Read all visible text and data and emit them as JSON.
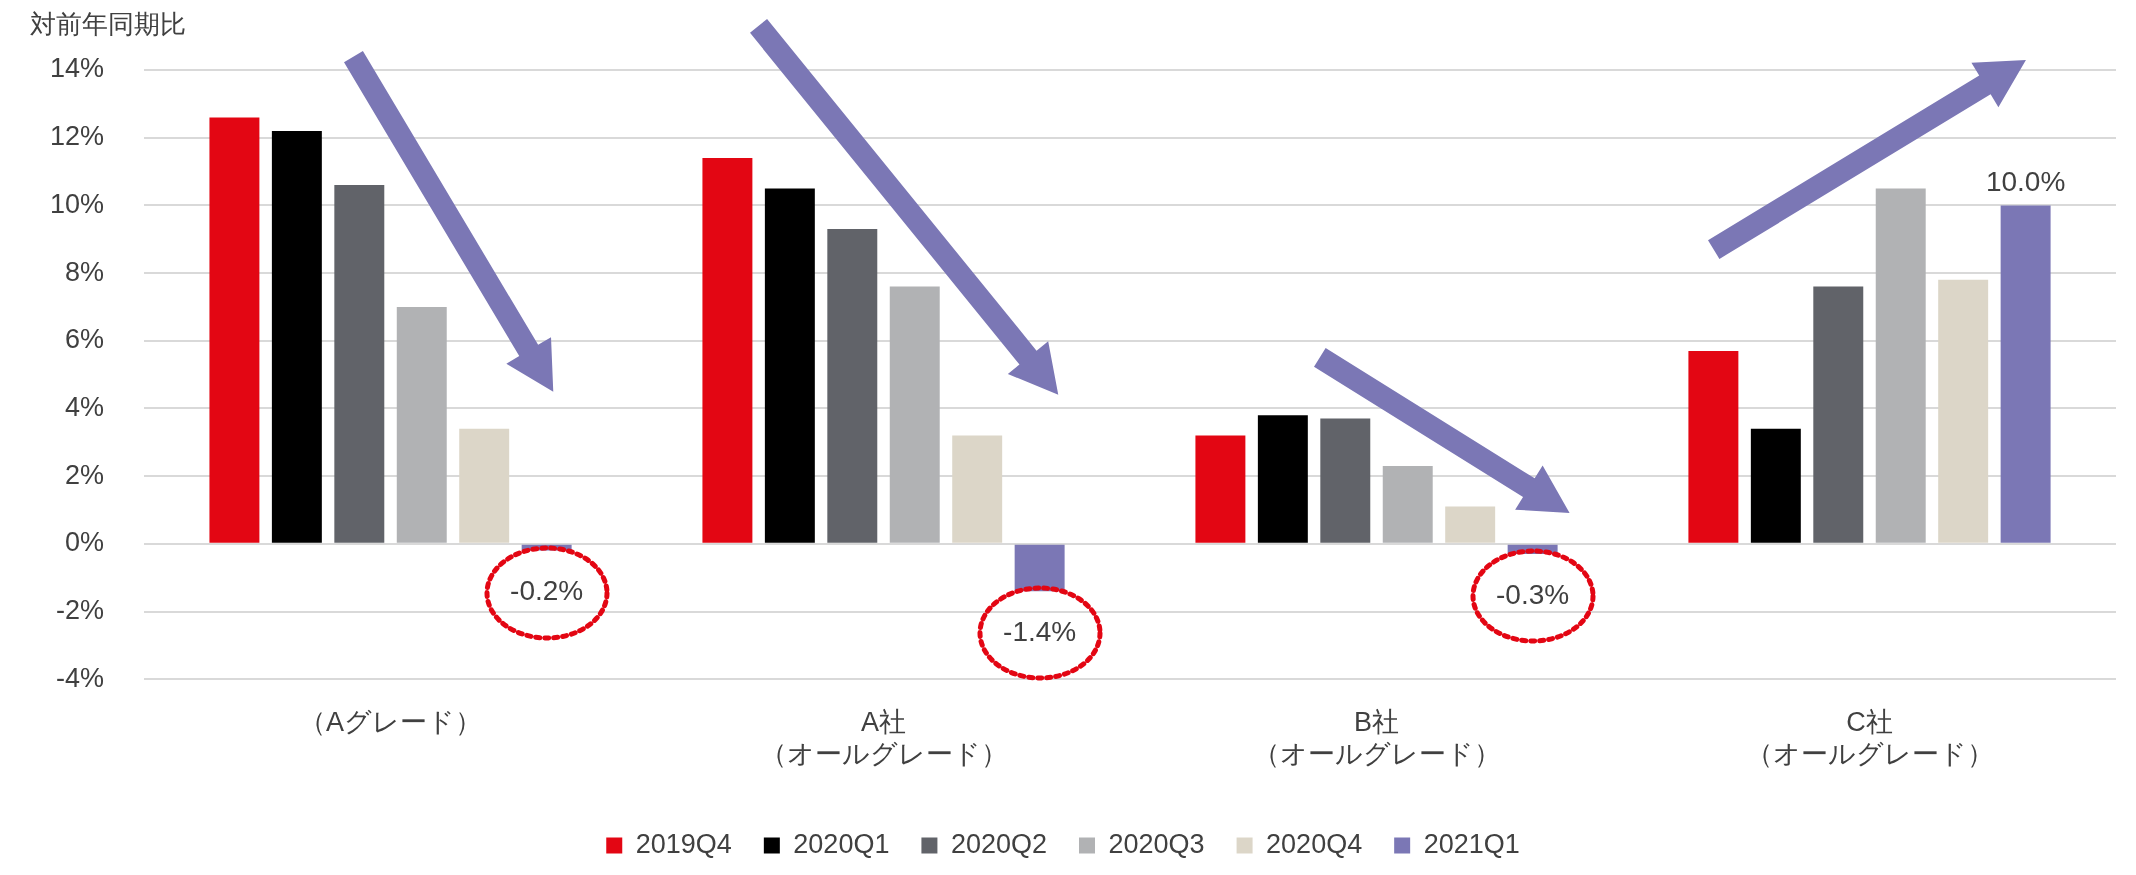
{
  "chart_data": {
    "type": "bar",
    "ylabel": "対前年同期比",
    "categories": [
      "（Aグレード）",
      "A社（オールグレード）",
      "B社（オールグレード）",
      "C社（オールグレード）"
    ],
    "series": [
      {
        "name": "2019Q4",
        "color": "#e30613",
        "values": [
          12.6,
          11.4,
          3.2,
          5.7
        ]
      },
      {
        "name": "2020Q1",
        "color": "#000000",
        "values": [
          12.2,
          10.5,
          3.8,
          3.4
        ]
      },
      {
        "name": "2020Q2",
        "color": "#616369",
        "values": [
          10.6,
          9.3,
          3.7,
          7.6
        ]
      },
      {
        "name": "2020Q3",
        "color": "#b1b2b4",
        "values": [
          7.0,
          7.6,
          2.3,
          10.5
        ]
      },
      {
        "name": "2020Q4",
        "color": "#dcd6c8",
        "values": [
          3.4,
          3.2,
          1.1,
          7.8
        ]
      },
      {
        "name": "2021Q1",
        "color": "#7b77b5",
        "values": [
          -0.2,
          -1.4,
          -0.3,
          10.0
        ],
        "value_labels": [
          "-0.2%",
          "-1.4%",
          "-0.3%",
          "10.0%"
        ]
      }
    ],
    "ylim": [
      -4,
      14
    ],
    "yticks": [
      {
        "value": -4,
        "label": "-4%"
      },
      {
        "value": -2,
        "label": "-2%"
      },
      {
        "value": 0,
        "label": "0%"
      },
      {
        "value": 2,
        "label": "2%"
      },
      {
        "value": 4,
        "label": "4%"
      },
      {
        "value": 6,
        "label": "6%"
      },
      {
        "value": 8,
        "label": "8%"
      },
      {
        "value": 10,
        "label": "10%"
      },
      {
        "value": 12,
        "label": "12%"
      },
      {
        "value": 14,
        "label": "14%"
      }
    ],
    "grid": "y",
    "legend": "bottom"
  }
}
